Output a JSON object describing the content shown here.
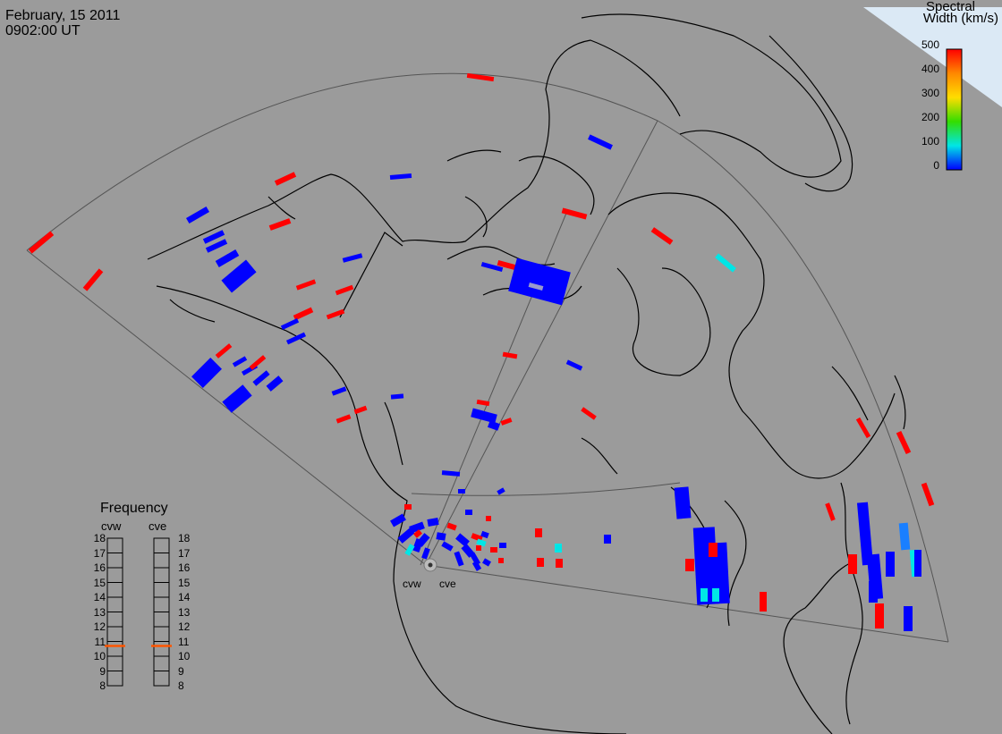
{
  "header": {
    "date": "February, 15 2011",
    "time": "0902:00 UT"
  },
  "colorbar": {
    "title_line1": "Spectral",
    "title_line2": "Width (km/s)",
    "ticks": [
      "500",
      "400",
      "300",
      "200",
      "100",
      "0"
    ],
    "colors": [
      "#ff0000",
      "#ff8800",
      "#ffdd00",
      "#33dd00",
      "#00e6e6",
      "#0000ff"
    ]
  },
  "frequency_panel": {
    "title": "Frequency",
    "radar_left": "cvw",
    "radar_right": "cve",
    "levels": [
      "18",
      "17",
      "16",
      "15",
      "14",
      "13",
      "12",
      "11",
      "10",
      "9",
      "8"
    ],
    "selected_level_left": 10.7,
    "selected_level_right": 10.7,
    "indicator_color": "#ff5500"
  },
  "stations": {
    "west": "cvw",
    "east": "cve"
  },
  "colors": {
    "background": "#9b9b9b",
    "land_line": "#000000",
    "fov_line": "#505050",
    "scatter_low": "#0000ff",
    "scatter_high": "#ff0000",
    "scatter_mid": "#00e6e6"
  }
}
